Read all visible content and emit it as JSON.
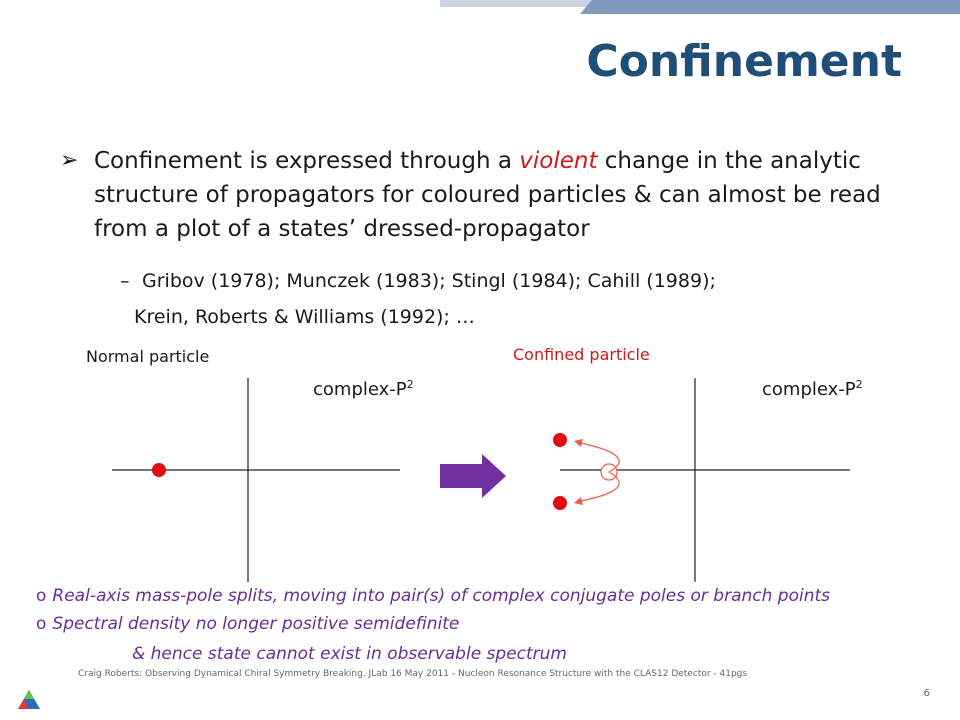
{
  "title": "Confinement",
  "bullet": {
    "marker": "➢",
    "pre": "Confinement is expressed through a ",
    "emph": "violent",
    "post": " change in the analytic structure of propagators for coloured particles & can almost be read from a plot of a states’ dressed-propagator"
  },
  "sub": {
    "dash": "–",
    "line1": "Gribov (1978); Munczek (1983); Stingl (1984); Cahill (1989);",
    "line2": "Krein, Roberts & Williams (1992); …"
  },
  "diagram": {
    "normal_label": "Normal particle",
    "confined_label": "Confined particle",
    "complex_label": "complex-P",
    "complex_sup": "2",
    "colors": {
      "pole": "#e30b0b",
      "arrow": "#7030a0",
      "curve": "#e8604a"
    }
  },
  "notes": {
    "marker": "o",
    "line1": "Real-axis mass-pole splits, moving into pair(s) of complex conjugate poles or branch points",
    "line2": "Spectral density no longer positive semidefinite",
    "line3": "& hence state cannot exist in observable spectrum"
  },
  "footer": "Craig Roberts: Observing Dynamical Chiral Symmetry Breaking. JLab 16 May 2011 - Nucleon Resonance Structure with the CLAS12 Detector - 41pgs",
  "page_number": "6",
  "logo_icon": "argonne-logo-icon"
}
